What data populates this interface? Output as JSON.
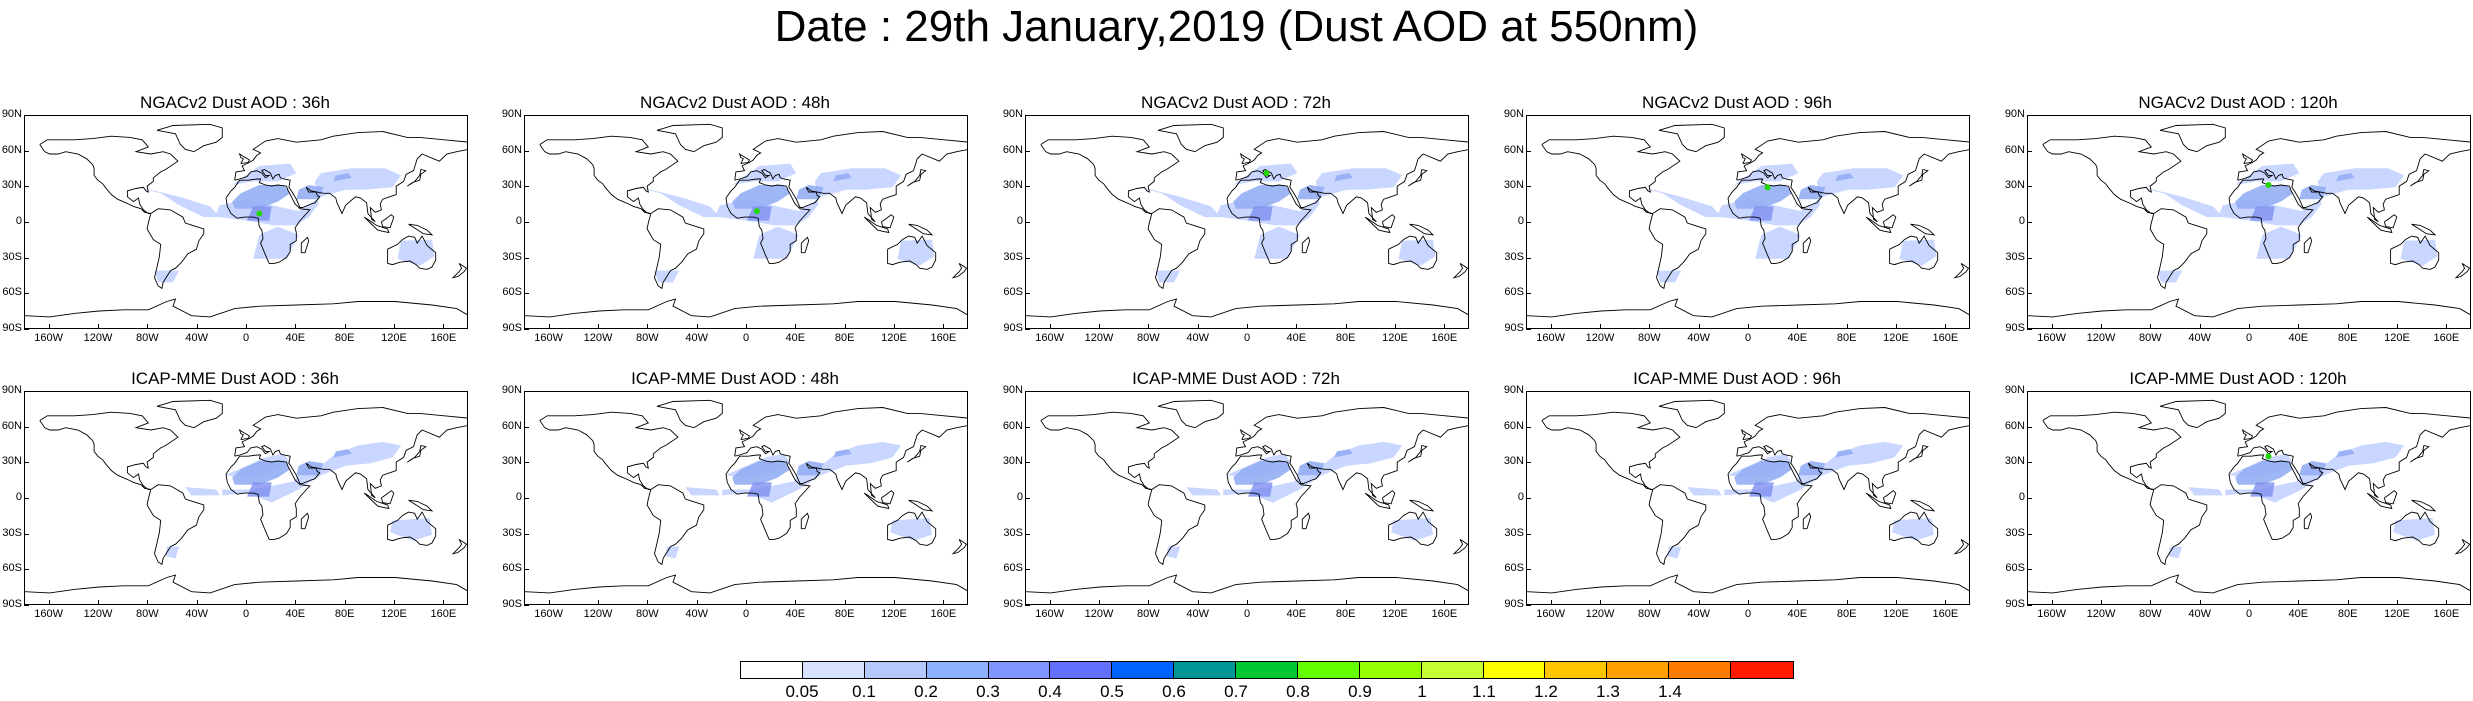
{
  "title": "Date : 29th January,2019 (Dust AOD at 550nm)",
  "lat_ticks": [
    "90N",
    "60N",
    "30N",
    "0",
    "30S",
    "60S",
    "90S"
  ],
  "lon_ticks": [
    "160W",
    "120W",
    "80W",
    "40W",
    "0",
    "40E",
    "80E",
    "120E",
    "160E"
  ],
  "panels": [
    {
      "title": "NGACv2 Dust AOD : 36h"
    },
    {
      "title": "NGACv2 Dust AOD : 48h"
    },
    {
      "title": "NGACv2 Dust AOD : 72h"
    },
    {
      "title": "NGACv2 Dust AOD : 96h"
    },
    {
      "title": "NGACv2 Dust AOD : 120h"
    },
    {
      "title": "ICAP-MME Dust AOD : 36h"
    },
    {
      "title": "ICAP-MME Dust AOD : 48h"
    },
    {
      "title": "ICAP-MME Dust AOD : 72h"
    },
    {
      "title": "ICAP-MME Dust AOD : 96h"
    },
    {
      "title": "ICAP-MME Dust AOD : 120h"
    }
  ],
  "colorbar": {
    "labels": [
      "0.05",
      "0.1",
      "0.2",
      "0.3",
      "0.4",
      "0.5",
      "0.6",
      "0.7",
      "0.8",
      "0.9",
      "1",
      "1.1",
      "1.2",
      "1.3",
      "1.4"
    ],
    "colors": [
      "#ffffff",
      "#d6e2ff",
      "#b5c9ff",
      "#8eb2ff",
      "#7f96ff",
      "#6370ff",
      "#0063ff",
      "#009696",
      "#00c633",
      "#63ff00",
      "#96ff00",
      "#c6ff33",
      "#ffff00",
      "#ffc600",
      "#ffa000",
      "#ff7c00",
      "#ff1900"
    ]
  }
}
